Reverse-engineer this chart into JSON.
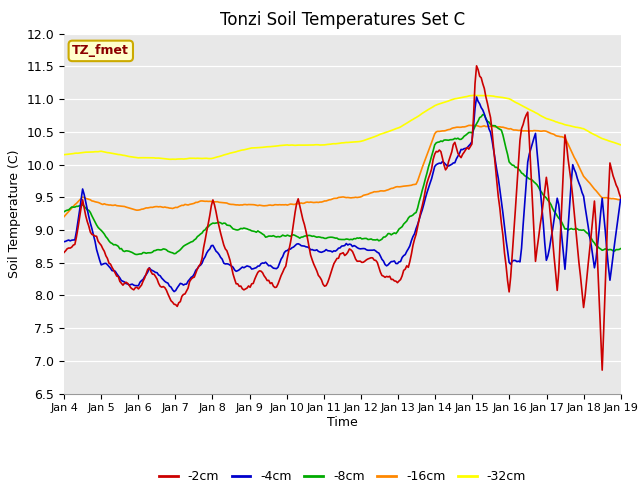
{
  "title": "Tonzi Soil Temperatures Set C",
  "xlabel": "Time",
  "ylabel": "Soil Temperature (C)",
  "ylim": [
    6.5,
    12.0
  ],
  "yticks": [
    6.5,
    7.0,
    7.5,
    8.0,
    8.5,
    9.0,
    9.5,
    10.0,
    10.5,
    11.0,
    11.5,
    12.0
  ],
  "xtick_labels": [
    "Jan 4",
    "Jan 5",
    "Jan 6",
    "Jan 7",
    "Jan 8",
    "Jan 9",
    "Jan 10",
    "Jan 11",
    "Jan 12",
    "Jan 13",
    "Jan 14",
    "Jan 15",
    "Jan 16",
    "Jan 17",
    "Jan 18",
    "Jan 19"
  ],
  "annotation_text": "TZ_fmet",
  "annotation_color": "#8B0000",
  "annotation_bg": "#FFFFCC",
  "annotation_border": "#CCAA00",
  "series_colors": [
    "#CC0000",
    "#0000CC",
    "#00AA00",
    "#FF8800",
    "#FFFF00"
  ],
  "series_labels": [
    "-2cm",
    "-4cm",
    "-8cm",
    "-16cm",
    "-32cm"
  ],
  "plot_bg": "#E8E8E8",
  "line_width": 1.2,
  "n_points": 360
}
